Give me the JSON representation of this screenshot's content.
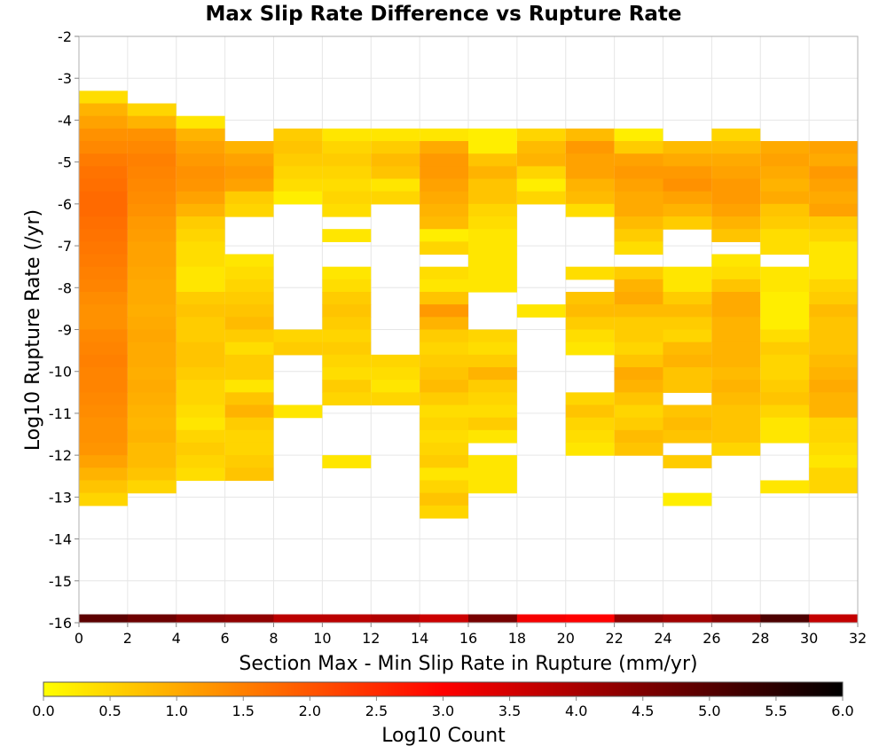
{
  "chart_data": {
    "type": "heatmap",
    "title": "Max Slip Rate Difference vs Rupture Rate",
    "xlabel": "Section Max - Min Slip Rate in Rupture (mm/yr)",
    "ylabel": "Log10 Rupture Rate (/yr)",
    "xlim": [
      0,
      32
    ],
    "ylim": [
      -16,
      -2
    ],
    "x_ticks": [
      "0",
      "2",
      "4",
      "6",
      "8",
      "10",
      "12",
      "14",
      "16",
      "18",
      "20",
      "22",
      "24",
      "26",
      "28",
      "30",
      "32"
    ],
    "y_ticks": [
      "-2",
      "-3",
      "-4",
      "-5",
      "-6",
      "-7",
      "-8",
      "-9",
      "-10",
      "-11",
      "-12",
      "-13",
      "-14",
      "-15",
      "-16"
    ],
    "x_bin_width": 2,
    "y_bin_height": 0.3,
    "grid": true,
    "colorbar": {
      "label": "Log10 Count",
      "range": [
        0.0,
        6.0
      ],
      "ticks": [
        "0.0",
        "0.5",
        "1.0",
        "1.5",
        "2.0",
        "2.5",
        "3.0",
        "3.5",
        "4.0",
        "4.5",
        "5.0",
        "5.5",
        "6.0"
      ],
      "colors": [
        "#ffff00",
        "#ffaa00",
        "#ff5500",
        "#ff0000",
        "#aa0000",
        "#550000",
        "#000000"
      ]
    },
    "columns": [
      {
        "x": 1,
        "y_top": -3.3,
        "values": [
          0.4,
          0.9,
          1.1,
          1.3,
          1.4,
          1.55,
          1.65,
          1.7,
          1.75,
          1.75,
          1.7,
          1.65,
          1.6,
          1.55,
          1.5,
          1.45,
          1.35,
          1.3,
          1.3,
          1.4,
          1.45,
          1.5,
          1.45,
          1.45,
          1.4,
          1.35,
          1.3,
          1.3,
          1.25,
          1.1,
          0.9,
          0.7,
          0.5
        ]
      },
      {
        "x": 3,
        "y_top": -3.6,
        "values": [
          0.5,
          0.9,
          1.3,
          1.4,
          1.5,
          1.45,
          1.4,
          1.35,
          1.3,
          1.2,
          1.15,
          1.1,
          1.1,
          1.05,
          1.0,
          1.0,
          0.95,
          1.0,
          1.05,
          1.0,
          1.0,
          0.95,
          1.0,
          0.95,
          0.9,
          0.85,
          0.9,
          0.8,
          0.8,
          0.7,
          0.5
        ]
      },
      {
        "x": 5,
        "y_top": -3.9,
        "values": [
          0.3,
          0.9,
          1.1,
          1.2,
          1.3,
          1.25,
          1.1,
          0.9,
          0.6,
          0.5,
          0.4,
          0.4,
          0.3,
          0.3,
          0.6,
          0.7,
          0.6,
          0.6,
          0.7,
          0.7,
          0.6,
          0.5,
          0.5,
          0.4,
          0.3,
          0.5,
          0.6,
          0.5,
          0.4
        ]
      },
      {
        "x": 7,
        "y_top": -4.5,
        "values": [
          0.9,
          1.1,
          1.2,
          1.1,
          0.6,
          0.5,
          null,
          null,
          null,
          0.3,
          0.4,
          0.5,
          0.6,
          0.7,
          0.8,
          0.6,
          0.4,
          0.6,
          0.6,
          0.3,
          0.7,
          0.9,
          0.6,
          0.5,
          0.5,
          0.6,
          0.7
        ]
      },
      {
        "x": 9,
        "y_top": -4.2,
        "values": [
          0.6,
          0.7,
          0.6,
          0.5,
          0.4,
          0.2,
          null,
          null,
          null,
          null,
          null,
          null,
          null,
          null,
          null,
          null,
          0.5,
          0.6,
          null,
          null,
          null,
          null,
          0.3
        ]
      },
      {
        "x": 11,
        "y_top": -4.2,
        "values": [
          0.3,
          0.5,
          0.6,
          0.5,
          0.4,
          0.5,
          0.4,
          null,
          0.3,
          null,
          null,
          0.3,
          0.4,
          0.6,
          0.7,
          0.6,
          0.5,
          0.6,
          0.5,
          0.4,
          0.6,
          0.5,
          null,
          null,
          null,
          null,
          0.3
        ]
      },
      {
        "x": 13,
        "y_top": -4.2,
        "values": [
          0.3,
          0.6,
          0.8,
          0.7,
          0.3,
          0.5,
          null,
          null,
          null,
          null,
          null,
          null,
          null,
          null,
          null,
          null,
          null,
          null,
          0.5,
          0.4,
          0.3,
          0.5
        ]
      },
      {
        "x": 15,
        "y_top": -4.2,
        "values": [
          0.3,
          1.0,
          1.2,
          1.2,
          1.1,
          1.0,
          0.9,
          0.8,
          0.2,
          0.5,
          null,
          0.4,
          0.3,
          0.7,
          1.2,
          0.9,
          0.6,
          0.5,
          0.6,
          0.7,
          0.8,
          0.6,
          0.4,
          0.5,
          0.4,
          0.5,
          0.6,
          0.3,
          0.5,
          0.7,
          0.5
        ]
      },
      {
        "x": 17,
        "y_top": -4.2,
        "values": [
          0.2,
          0.2,
          0.7,
          0.9,
          0.7,
          0.7,
          0.5,
          0.4,
          0.3,
          0.3,
          0.3,
          0.3,
          0.3,
          null,
          null,
          null,
          0.5,
          0.4,
          0.6,
          0.9,
          0.6,
          0.5,
          0.4,
          0.6,
          0.3,
          null,
          0.3,
          0.3,
          0.3
        ]
      },
      {
        "x": 19,
        "y_top": -4.2,
        "values": [
          0.5,
          0.8,
          0.9,
          0.5,
          0.2,
          0.5,
          null,
          null,
          null,
          null,
          null,
          null,
          null,
          null,
          0.3
        ]
      },
      {
        "x": 21,
        "y_top": -4.2,
        "values": [
          0.8,
          1.2,
          1.1,
          1.1,
          0.9,
          0.8,
          0.4,
          null,
          null,
          null,
          null,
          0.4,
          null,
          0.7,
          0.8,
          0.6,
          0.4,
          0.3,
          null,
          null,
          null,
          0.5,
          0.7,
          0.5,
          0.4,
          0.3
        ]
      },
      {
        "x": 23,
        "y_top": -4.2,
        "values": [
          0.2,
          0.6,
          1.1,
          1.2,
          1.1,
          1.0,
          1.0,
          0.8,
          0.6,
          0.4,
          null,
          0.6,
          0.9,
          1.0,
          0.8,
          0.6,
          0.6,
          0.5,
          0.7,
          1.0,
          0.9,
          0.7,
          0.5,
          0.6,
          0.8,
          0.7
        ]
      },
      {
        "x": 25,
        "y_top": -4.5,
        "values": [
          0.8,
          1.0,
          1.2,
          1.3,
          1.1,
          0.9,
          0.6,
          null,
          null,
          null,
          0.3,
          0.3,
          0.6,
          0.8,
          0.6,
          0.5,
          0.8,
          0.9,
          0.7,
          0.7,
          null,
          0.7,
          0.8,
          0.7,
          null,
          0.6,
          null,
          null,
          0.2
        ]
      },
      {
        "x": 27,
        "y_top": -4.2,
        "values": [
          0.5,
          0.8,
          1.0,
          1.1,
          1.2,
          1.2,
          1.1,
          0.9,
          0.7,
          null,
          0.3,
          0.4,
          0.7,
          1.0,
          1.0,
          0.9,
          0.9,
          0.9,
          0.9,
          0.8,
          0.9,
          0.8,
          0.7,
          0.7,
          0.7,
          0.5
        ]
      },
      {
        "x": 29,
        "y_top": -4.5,
        "values": [
          1.0,
          1.1,
          1.0,
          0.9,
          1.0,
          0.7,
          0.6,
          0.4,
          0.4,
          null,
          0.3,
          0.3,
          0.2,
          0.2,
          0.2,
          0.4,
          0.6,
          0.5,
          0.5,
          0.6,
          0.7,
          0.5,
          0.3,
          0.3,
          null,
          null,
          null,
          0.3
        ]
      },
      {
        "x": 31,
        "y_top": -4.5,
        "values": [
          1.1,
          1.0,
          1.2,
          1.1,
          1.0,
          1.1,
          0.6,
          0.5,
          0.3,
          0.3,
          0.3,
          0.5,
          0.6,
          0.8,
          0.7,
          0.7,
          0.7,
          0.8,
          0.9,
          1.0,
          0.9,
          0.9,
          0.5,
          0.5,
          0.4,
          0.3,
          0.5,
          0.5
        ]
      }
    ],
    "bottom_row": {
      "y": -15.9,
      "values": [
        4.9,
        4.7,
        4.4,
        4.3,
        3.8,
        3.8,
        3.9,
        3.6,
        4.6,
        3.1,
        3.0,
        4.3,
        4.1,
        4.4,
        5.1,
        3.7
      ]
    }
  }
}
